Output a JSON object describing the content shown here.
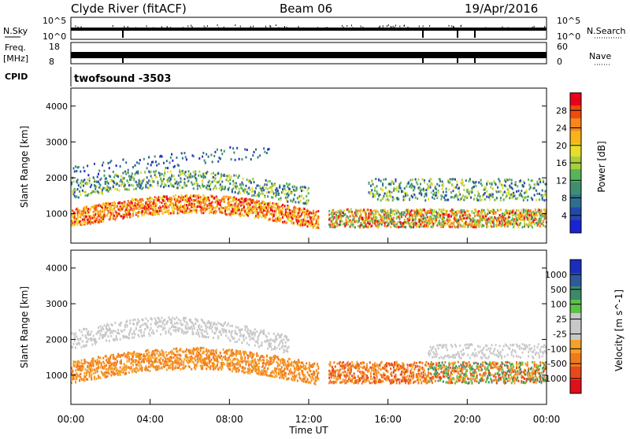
{
  "header": {
    "station": "Clyde River (fitACF)",
    "beam": "Beam 06",
    "date": "19/Apr/2016"
  },
  "panels": {
    "nsky": {
      "label": "N.Sky",
      "left_ticks": [
        "10^5",
        "10^0"
      ],
      "right_ticks": [
        "10^5",
        "10^0"
      ],
      "right_label": "N.Search"
    },
    "freq": {
      "label_top": "Freq.",
      "label_unit": "[MHz]",
      "left_ticks": [
        "18",
        "8"
      ],
      "right_ticks": [
        "60",
        "0"
      ],
      "right_label": "Nave"
    },
    "cpid": {
      "label": "CPID",
      "mode": "twofsound -3503"
    }
  },
  "chart_data": [
    {
      "type": "heatmap",
      "title": "",
      "ylabel": "Slant Range [km]",
      "xlabel": "",
      "xlim": [
        "00:00",
        "24:00"
      ],
      "ylim": [
        180,
        4500
      ],
      "y_ticks": [
        1000,
        2000,
        3000,
        4000
      ],
      "colorbar": {
        "label": "Power [dB]",
        "ticks": [
          "28",
          "24",
          "20",
          "16",
          "12",
          "8",
          "4"
        ],
        "colors": [
          "#e8001a",
          "#f24a0a",
          "#f7861e",
          "#f7b519",
          "#e8dd2a",
          "#a9cf3c",
          "#58b45a",
          "#3f8f6e",
          "#2f6f8e",
          "#2448a8",
          "#1a22d6"
        ]
      }
    },
    {
      "type": "heatmap",
      "title": "",
      "ylabel": "Slant Range [km]",
      "xlabel": "Time UT",
      "xlim": [
        "00:00",
        "24:00"
      ],
      "ylim": [
        180,
        4500
      ],
      "y_ticks": [
        1000,
        2000,
        3000,
        4000
      ],
      "x_ticks": [
        "00:00",
        "04:00",
        "08:00",
        "12:00",
        "16:00",
        "20:00",
        "00:00"
      ],
      "colorbar": {
        "label": "Velocity [m s^-1]",
        "ticks": [
          "1000",
          "500",
          "100",
          "25",
          "-25",
          "-100",
          "-500",
          "-1000"
        ],
        "colors": [
          "#1b2dbf",
          "#2f5a9c",
          "#3b8a6a",
          "#5cc04a",
          "#c8c8c8",
          "#c8c8c8",
          "#f7a028",
          "#f07a1e",
          "#e8481a",
          "#e0101a"
        ]
      }
    }
  ]
}
